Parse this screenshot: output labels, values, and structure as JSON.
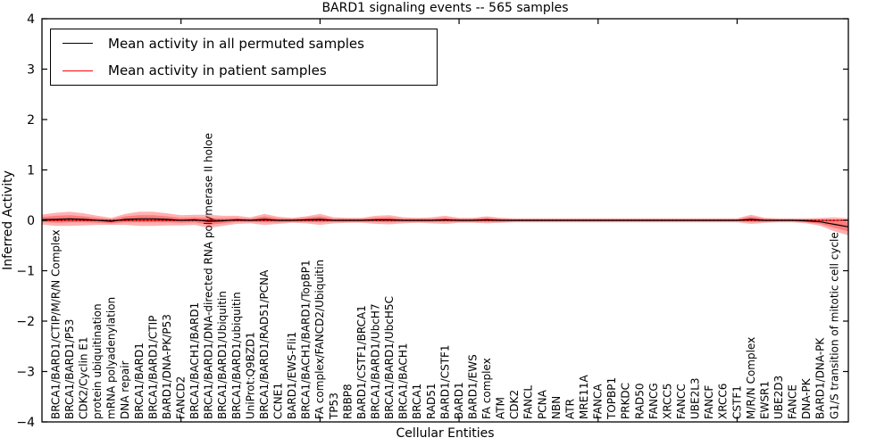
{
  "title": "BARD1 signaling events -- 565 samples",
  "axes": {
    "x_label": "Cellular Entities",
    "y_label": "Inferred Activity"
  },
  "legend": {
    "items": [
      {
        "label": "Mean activity in all permuted samples",
        "color": "#000000"
      },
      {
        "label": "Mean activity in patient samples",
        "color": "#ff0000"
      }
    ]
  },
  "chart_data": {
    "type": "line",
    "title": "BARD1 signaling events -- 565 samples",
    "xlabel": "Cellular Entities",
    "ylabel": "Inferred Activity",
    "ylim": [
      -4,
      4
    ],
    "xlim": [
      0,
      58
    ],
    "grid": false,
    "legend_position": "upper left",
    "y_ticks": [
      -4,
      -3,
      -2,
      -1,
      0,
      1,
      2,
      3,
      4
    ],
    "x_ticks_unlabeled": [
      10,
      20,
      30,
      40,
      50
    ],
    "zero_line": {
      "value": 0,
      "style": "dotted",
      "color": "#000000"
    },
    "categories": [
      "BRCA1/BARD1/CTIP/M/R/N Complex",
      "BRCA1/BARD1/P53",
      "CDK2/Cyclin E1",
      "protein ubiquitination",
      "mRNA polyadenylation",
      "DNA repair",
      "BRCA1/BARD1",
      "BRCA1/BARD1/CTIP",
      "BARD1/DNA-PK/P53",
      "FANCD2",
      "BRCA1/BACH1/BARD1",
      "BRCA1/BARD1/DNA-directed RNA polymerase II holoe",
      "BRCA1/BARD1/Ubiquitin",
      "BRCA1/BARD1/ubiquitin",
      "UniProt:Q9BZD1",
      "BRCA1/BARD1/RAD51/PCNA",
      "CCNE1",
      "BARD1/EWS-Fli1",
      "BRCA1/BACH1/BARD1/TopBP1",
      "FA complex/FANCD2/Ubiquitin",
      "TP53",
      "RBBP8",
      "BARD1/CSTF1/BRCA1",
      "BRCA1/BARD1/UbcH7",
      "BRCA1/BARD1/UbcH5C",
      "BRCA1/BACH1",
      "BRCA1",
      "RAD51",
      "BARD1/CSTF1",
      "BARD1",
      "BARD1/EWS",
      "FA complex",
      "ATM",
      "CDK2",
      "FANCL",
      "PCNA",
      "NBN",
      "ATR",
      "MRE11A",
      "FANCA",
      "TOPBP1",
      "PRKDC",
      "RAD50",
      "FANCG",
      "XRCC5",
      "FANCC",
      "UBE2L3",
      "FANCF",
      "XRCC6",
      "CSTF1",
      "M/R/N Complex",
      "EWSR1",
      "UBE2D3",
      "FANCE",
      "DNA-PK",
      "BARD1/DNA-PK",
      "G1/S transition of mitotic cell cycle"
    ],
    "series": [
      {
        "name": "Mean activity in all permuted samples",
        "color": "#000000",
        "values": [
          0.02,
          0.03,
          0.02,
          0.0,
          -0.02,
          0.02,
          0.03,
          0.03,
          0.02,
          0.0,
          0.01,
          -0.02,
          -0.01,
          0.01,
          0.0,
          0.02,
          0.0,
          0.0,
          0.01,
          0.02,
          0.0,
          0.0,
          0.0,
          0.01,
          0.01,
          0.0,
          0.0,
          0.0,
          0.01,
          0.0,
          0.0,
          0.01,
          0.0,
          0.0,
          0.0,
          0.0,
          0.0,
          0.0,
          0.0,
          0.0,
          0.0,
          0.0,
          0.0,
          0.0,
          0.0,
          0.0,
          0.0,
          0.0,
          0.0,
          0.0,
          0.02,
          0.0,
          0.0,
          0.0,
          -0.01,
          -0.03,
          -0.08
        ]
      },
      {
        "name": "Mean activity in patient samples",
        "color": "#ff0000",
        "values": [
          0,
          0,
          0,
          0,
          0,
          0,
          0,
          0,
          0,
          0,
          0,
          0,
          0,
          0,
          0,
          0,
          0,
          0,
          0,
          0,
          0,
          0,
          0,
          0,
          0,
          0,
          0,
          0,
          0,
          0,
          0,
          0,
          0,
          0,
          0,
          0,
          0,
          0,
          0,
          0,
          0,
          0,
          0,
          0,
          0,
          0,
          0,
          0,
          0,
          0,
          0,
          0,
          0,
          0,
          0,
          0,
          0
        ]
      }
    ],
    "band": {
      "color": "#ff0000",
      "alpha": 0.3,
      "centered_on": "Mean activity in all permuted samples",
      "outer_halfwidth": [
        0.13,
        0.14,
        0.12,
        0.09,
        0.07,
        0.11,
        0.14,
        0.14,
        0.12,
        0.1,
        0.1,
        0.13,
        0.1,
        0.08,
        0.06,
        0.11,
        0.07,
        0.05,
        0.07,
        0.11,
        0.06,
        0.05,
        0.05,
        0.08,
        0.09,
        0.06,
        0.05,
        0.06,
        0.08,
        0.05,
        0.05,
        0.07,
        0.05,
        0.04,
        0.04,
        0.04,
        0.04,
        0.04,
        0.04,
        0.04,
        0.04,
        0.04,
        0.04,
        0.04,
        0.04,
        0.04,
        0.04,
        0.04,
        0.04,
        0.04,
        0.09,
        0.05,
        0.04,
        0.04,
        0.05,
        0.08,
        0.14
      ],
      "inner_halfwidth": [
        0.07,
        0.07,
        0.06,
        0.05,
        0.04,
        0.06,
        0.07,
        0.07,
        0.06,
        0.05,
        0.05,
        0.07,
        0.05,
        0.04,
        0.03,
        0.06,
        0.04,
        0.03,
        0.04,
        0.06,
        0.03,
        0.03,
        0.03,
        0.04,
        0.05,
        0.03,
        0.03,
        0.03,
        0.04,
        0.03,
        0.03,
        0.04,
        0.03,
        0.02,
        0.02,
        0.02,
        0.02,
        0.02,
        0.02,
        0.02,
        0.02,
        0.02,
        0.02,
        0.02,
        0.02,
        0.02,
        0.02,
        0.02,
        0.02,
        0.02,
        0.05,
        0.03,
        0.02,
        0.02,
        0.03,
        0.04,
        0.07
      ]
    },
    "edges": {
      "left": {
        "mean_permuted": 0.015,
        "mean_patient": 0,
        "outer": 0.1,
        "inner": 0.05
      },
      "right": {
        "mean_permuted": -0.13,
        "mean_patient": 0,
        "outer": 0.17,
        "inner": 0.09
      }
    }
  },
  "style": {
    "frame_color": "#000000",
    "background": "#ffffff",
    "tick_label_color": "#000000"
  }
}
